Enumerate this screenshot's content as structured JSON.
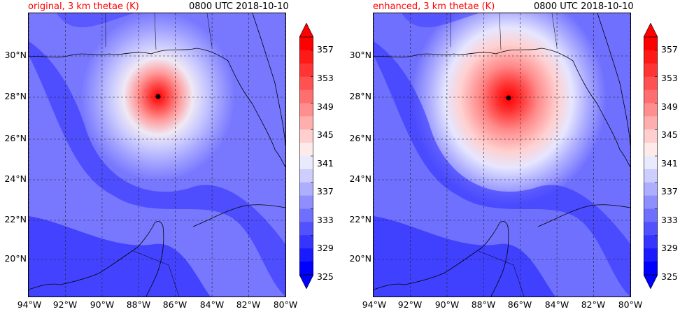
{
  "panels": [
    {
      "id": "original",
      "title_left": "original, 3 km thetae (K)",
      "title_right": "0800 UTC 2018-10-10"
    },
    {
      "id": "enhanced",
      "title_left": "enhanced, 3 km thetae (K)",
      "title_right": "0800 UTC 2018-10-10"
    }
  ],
  "axes": {
    "lat_labels": [
      "30°N",
      "28°N",
      "26°N",
      "24°N",
      "22°N",
      "20°N"
    ],
    "lon_labels": [
      "94°W",
      "92°W",
      "90°W",
      "88°W",
      "86°W",
      "84°W",
      "82°W",
      "80°W"
    ]
  },
  "colorbar": {
    "labels": [
      "357",
      "353",
      "349",
      "345",
      "341",
      "337",
      "333",
      "329",
      "325"
    ],
    "colors": [
      "#ff0000",
      "#ff1a1a",
      "#ff3535",
      "#ff5151",
      "#ff6f6f",
      "#ff8e8e",
      "#ffaeae",
      "#ffcece",
      "#ffeaea",
      "#eaeaff",
      "#cecefe",
      "#aeaefe",
      "#8e8efe",
      "#6f6ffe",
      "#5151fe",
      "#3535fe",
      "#1a1afe",
      "#0000ff"
    ],
    "extend_top_color": "#ff0000",
    "extend_bottom_color": "#0000ff"
  },
  "map_features": {
    "storm_center_label": "hurricane-center-dot",
    "gridline_style": "dashed"
  }
}
